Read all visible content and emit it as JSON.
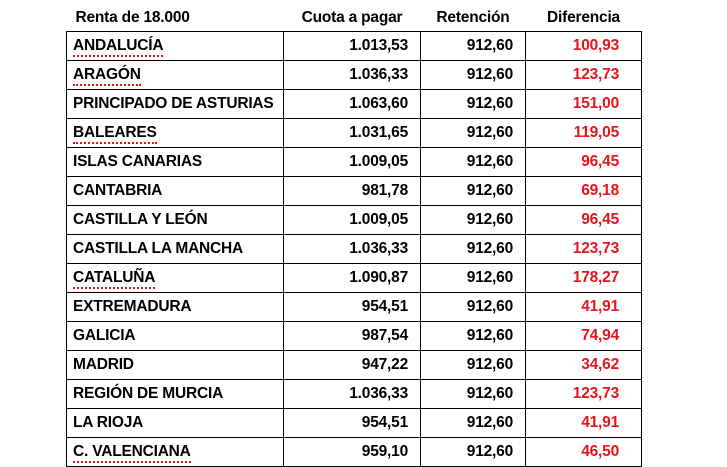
{
  "chart_data": {
    "type": "table",
    "title": "Renta de 18.000",
    "columns": [
      "Renta de 18.000",
      "Cuota a pagar",
      "Retención",
      "Diferencia"
    ],
    "rows": [
      {
        "region": "ANDALUCÍA",
        "cuota_a_pagar": "1.013,53",
        "retencion": "912,60",
        "diferencia": "100,93",
        "spellcheck_underline": true
      },
      {
        "region": "ARAGÓN",
        "cuota_a_pagar": "1.036,33",
        "retencion": "912,60",
        "diferencia": "123,73",
        "spellcheck_underline": true
      },
      {
        "region": "PRINCIPADO DE ASTURIAS",
        "cuota_a_pagar": "1.063,60",
        "retencion": "912,60",
        "diferencia": "151,00",
        "spellcheck_underline": false
      },
      {
        "region": "BALEARES",
        "cuota_a_pagar": "1.031,65",
        "retencion": "912,60",
        "diferencia": "119,05",
        "spellcheck_underline": true
      },
      {
        "region": "ISLAS CANARIAS",
        "cuota_a_pagar": "1.009,05",
        "retencion": "912,60",
        "diferencia": "96,45",
        "spellcheck_underline": false
      },
      {
        "region": "CANTABRIA",
        "cuota_a_pagar": "981,78",
        "retencion": "912,60",
        "diferencia": "69,18",
        "spellcheck_underline": false
      },
      {
        "region": "CASTILLA Y LEÓN",
        "cuota_a_pagar": "1.009,05",
        "retencion": "912,60",
        "diferencia": "96,45",
        "spellcheck_underline": false
      },
      {
        "region": "CASTILLA LA MANCHA",
        "cuota_a_pagar": "1.036,33",
        "retencion": "912,60",
        "diferencia": "123,73",
        "spellcheck_underline": false
      },
      {
        "region": "CATALUÑA",
        "cuota_a_pagar": "1.090,87",
        "retencion": "912,60",
        "diferencia": "178,27",
        "spellcheck_underline": true
      },
      {
        "region": "EXTREMADURA",
        "cuota_a_pagar": "954,51",
        "retencion": "912,60",
        "diferencia": "41,91",
        "spellcheck_underline": false
      },
      {
        "region": "GALICIA",
        "cuota_a_pagar": "987,54",
        "retencion": "912,60",
        "diferencia": "74,94",
        "spellcheck_underline": false
      },
      {
        "region": "MADRID",
        "cuota_a_pagar": "947,22",
        "retencion": "912,60",
        "diferencia": "34,62",
        "spellcheck_underline": false
      },
      {
        "region": "REGIÓN DE MURCIA",
        "cuota_a_pagar": "1.036,33",
        "retencion": "912,60",
        "diferencia": "123,73",
        "spellcheck_underline": false
      },
      {
        "region": "LA RIOJA",
        "cuota_a_pagar": "954,51",
        "retencion": "912,60",
        "diferencia": "41,91",
        "spellcheck_underline": false
      },
      {
        "region": "C. VALENCIANA",
        "cuota_a_pagar": "959,10",
        "retencion": "912,60",
        "diferencia": "46,50",
        "spellcheck_underline": true
      }
    ]
  },
  "colors": {
    "difference_text": "#e8141b",
    "text": "#000000",
    "border": "#000000",
    "background": "#ffffff"
  }
}
